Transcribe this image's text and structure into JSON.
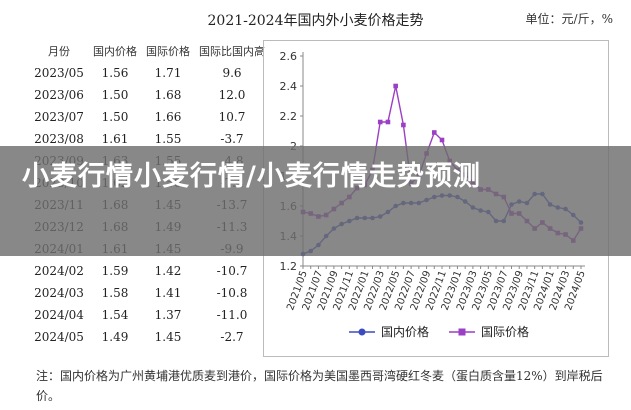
{
  "header": {
    "title": "2021-2024年国内外小麦价格走势",
    "unit": "单位：元/斤，%"
  },
  "table": {
    "headers": [
      "月份",
      "国内价格",
      "国际价格",
      "国际比国内高"
    ],
    "rows": [
      [
        "2023/05",
        "1.56",
        "1.71",
        "9.6"
      ],
      [
        "2023/06",
        "1.50",
        "1.68",
        "12.0"
      ],
      [
        "2023/07",
        "1.50",
        "1.66",
        "10.7"
      ],
      [
        "2023/08",
        "1.61",
        "1.55",
        "-3.7"
      ],
      [
        "2023/09",
        "1.63",
        "1.55",
        "-4.8"
      ],
      [
        "2023/10",
        "1.62",
        "1.50",
        "-7.4"
      ],
      [
        "2023/11",
        "1.68",
        "1.45",
        "-13.7"
      ],
      [
        "2023/12",
        "1.68",
        "1.49",
        "-11.3"
      ],
      [
        "2024/01",
        "1.61",
        "1.45",
        "-9.9"
      ],
      [
        "2024/02",
        "1.59",
        "1.42",
        "-10.7"
      ],
      [
        "2024/03",
        "1.58",
        "1.41",
        "-10.8"
      ],
      [
        "2024/04",
        "1.54",
        "1.37",
        "-11.0"
      ],
      [
        "2024/05",
        "1.49",
        "1.45",
        "-2.7"
      ]
    ]
  },
  "chart_data": {
    "type": "line",
    "title": "",
    "ylim": [
      1.2,
      2.6
    ],
    "yticks": [
      "1.2",
      "1.4",
      "1.6",
      "1.8",
      "2",
      "2.2",
      "2.4",
      "2.6"
    ],
    "ytick_values": [
      1.2,
      1.4,
      1.6,
      1.8,
      2.0,
      2.2,
      2.4,
      2.6
    ],
    "x": [
      "2021/05",
      "2021/06",
      "2021/07",
      "2021/08",
      "2021/09",
      "2021/10",
      "2021/11",
      "2021/12",
      "2022/01",
      "2022/02",
      "2022/03",
      "2022/04",
      "2022/05",
      "2022/06",
      "2022/07",
      "2022/08",
      "2022/09",
      "2022/10",
      "2022/11",
      "2022/12",
      "2023/01",
      "2023/02",
      "2023/03",
      "2023/04",
      "2023/05",
      "2023/06",
      "2023/07",
      "2023/08",
      "2023/09",
      "2023/10",
      "2023/11",
      "2023/12",
      "2024/01",
      "2024/02",
      "2024/03",
      "2024/04",
      "2024/05"
    ],
    "xtick_labels": [
      "2021/05",
      "2021/07",
      "2021/09",
      "2021/11",
      "2022/01",
      "2022/03",
      "2022/05",
      "2022/07",
      "2022/09",
      "2022/11",
      "2023/01",
      "2023/03",
      "2023/05",
      "2023/07",
      "2023/09",
      "2023/11",
      "2024/01",
      "2024/03",
      "2024/05"
    ],
    "series": [
      {
        "name": "国内价格",
        "color": "#3b4cc0",
        "values": [
          1.28,
          1.3,
          1.34,
          1.4,
          1.45,
          1.48,
          1.5,
          1.52,
          1.52,
          1.52,
          1.53,
          1.56,
          1.6,
          1.62,
          1.62,
          1.62,
          1.64,
          1.66,
          1.67,
          1.67,
          1.66,
          1.63,
          1.59,
          1.57,
          1.56,
          1.5,
          1.5,
          1.61,
          1.63,
          1.62,
          1.68,
          1.68,
          1.61,
          1.59,
          1.58,
          1.54,
          1.49
        ]
      },
      {
        "name": "国际价格",
        "color": "#9b3fc4",
        "values": [
          1.56,
          1.55,
          1.53,
          1.54,
          1.58,
          1.62,
          1.66,
          1.72,
          1.74,
          1.84,
          2.16,
          2.16,
          2.4,
          2.14,
          1.75,
          1.8,
          1.95,
          2.09,
          2.04,
          1.9,
          1.84,
          1.81,
          1.76,
          1.71,
          1.71,
          1.68,
          1.66,
          1.55,
          1.55,
          1.5,
          1.45,
          1.49,
          1.45,
          1.42,
          1.41,
          1.37,
          1.45
        ]
      }
    ],
    "legend_position": "bottom-center",
    "grid": false
  },
  "note": "注：国内价格为广州黄埔港优质麦到港价，国际价格为美国墨西哥湾硬红冬麦（蛋白质含量12%）到岸税后价。",
  "banner": {
    "text": "小麦行情小麦行情/小麦行情走势预测"
  }
}
